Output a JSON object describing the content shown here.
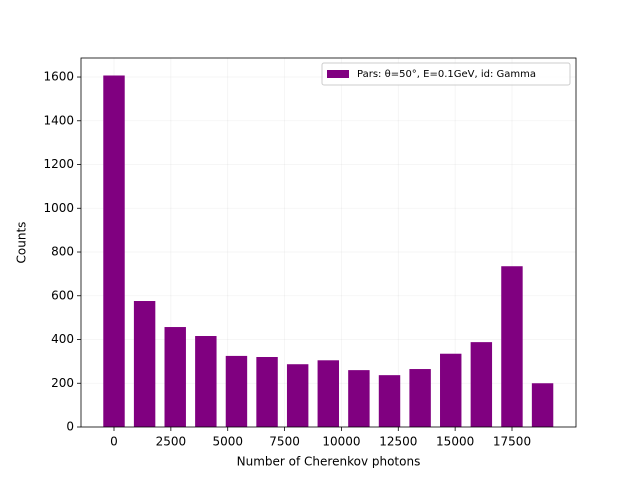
{
  "chart_data": {
    "type": "histogram",
    "x_label": "Number of Cherenkov photons",
    "y_label": "Counts",
    "bins": [
      -673,
      673,
      2019,
      3365,
      4711,
      6057,
      7403,
      8749,
      10095,
      11441,
      12787,
      14133,
      15479,
      16825,
      18171,
      19517
    ],
    "series": [
      {
        "name": "Pars: θ=50°, E=0.1GeV, id: Gamma",
        "color": "#800080",
        "values": [
          1607,
          576,
          457,
          416,
          325,
          320,
          287,
          305,
          260,
          237,
          265,
          335,
          388,
          735,
          200
        ]
      }
    ],
    "xlim": [
      -1451,
      20314
    ],
    "ylim": [
      0,
      1687
    ],
    "xticks": [
      0,
      2500,
      5000,
      7500,
      10000,
      12500,
      15000,
      17500
    ],
    "yticks": [
      0,
      200,
      400,
      600,
      800,
      1000,
      1200,
      1400,
      1600
    ],
    "grid": true,
    "legend_position": "upper right"
  }
}
